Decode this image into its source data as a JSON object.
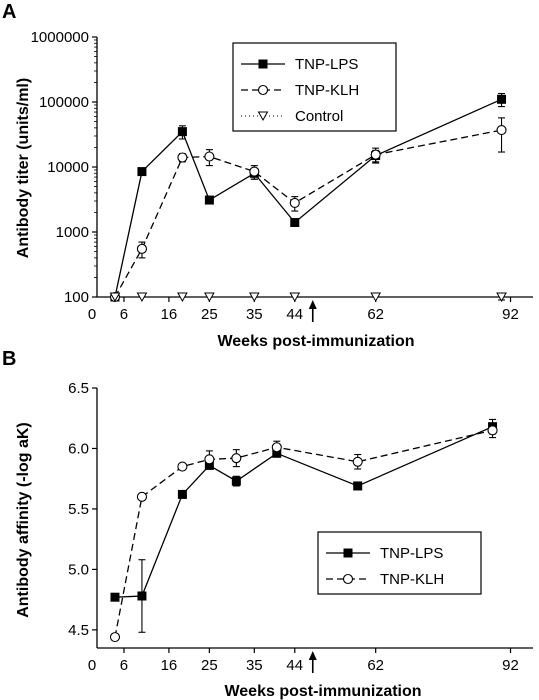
{
  "chart_data": [
    {
      "panel": "A",
      "type": "line",
      "xlabel": "Weeks post-immunization",
      "ylabel": "Antibody titer (units/ml)",
      "y_scale": "log",
      "xlim": [
        0,
        97
      ],
      "ylim": [
        100,
        1000000
      ],
      "x_tick_labels": [
        "0",
        "6",
        "16",
        "25",
        "35",
        "44",
        "62",
        "92"
      ],
      "x_ticks": [
        0,
        6,
        16,
        25,
        35,
        44,
        62,
        92
      ],
      "y_tick_labels": [
        "100",
        "1000",
        "10000",
        "100000",
        "1000000"
      ],
      "y_ticks": [
        100,
        1000,
        10000,
        100000,
        1000000
      ],
      "arrow_x": 48,
      "legend_position": "top-center",
      "series": [
        {
          "name": "TNP-LPS",
          "marker": "square-filled",
          "line": "solid",
          "x": [
            4,
            10,
            19,
            25,
            35,
            44,
            62,
            90
          ],
          "y": [
            100,
            8500,
            35000,
            3100,
            8000,
            1400,
            15000,
            110000
          ],
          "err": [
            0,
            0,
            8000,
            0,
            1500,
            0,
            3000,
            25000
          ]
        },
        {
          "name": "TNP-KLH",
          "marker": "circle-open",
          "line": "dashed",
          "x": [
            4,
            10,
            19,
            25,
            35,
            44,
            62,
            90
          ],
          "y": [
            100,
            550,
            14000,
            14500,
            8500,
            2800,
            15500,
            37000
          ],
          "err": [
            0,
            150,
            2000,
            4000,
            2000,
            700,
            4000,
            20000
          ]
        },
        {
          "name": "Control",
          "marker": "triangle-down-open",
          "line": "dotted",
          "x": [
            4,
            10,
            19,
            25,
            35,
            44,
            62,
            90
          ],
          "y": [
            100,
            100,
            100,
            100,
            100,
            100,
            100,
            100
          ],
          "err": [
            0,
            0,
            0,
            0,
            0,
            0,
            0,
            10
          ]
        }
      ]
    },
    {
      "panel": "B",
      "type": "line",
      "xlabel": "Weeks post-immunization",
      "ylabel": "Antibody affinity (-log aK)",
      "xlim": [
        0,
        97
      ],
      "ylim": [
        4.35,
        6.5
      ],
      "x_tick_labels": [
        "0",
        "6",
        "16",
        "25",
        "35",
        "44",
        "62",
        "92"
      ],
      "x_ticks": [
        0,
        6,
        16,
        25,
        35,
        44,
        62,
        92
      ],
      "y_tick_labels": [
        "4.5",
        "5.0",
        "5.5",
        "6.0",
        "6.5"
      ],
      "y_ticks": [
        4.5,
        5.0,
        5.5,
        6.0,
        6.5
      ],
      "arrow_x": 48,
      "legend_position": "bottom-right",
      "series": [
        {
          "name": "TNP-LPS",
          "marker": "square-filled",
          "line": "solid",
          "x": [
            4,
            10,
            19,
            25,
            31,
            40,
            58,
            88
          ],
          "y": [
            4.77,
            4.78,
            5.62,
            5.86,
            5.73,
            5.96,
            5.69,
            6.18
          ],
          "err": [
            0,
            0.3,
            0,
            0.03,
            0.04,
            0.03,
            0.03,
            0.06
          ]
        },
        {
          "name": "TNP-KLH",
          "marker": "circle-open",
          "line": "dashed",
          "x": [
            4,
            10,
            19,
            25,
            31,
            40,
            58,
            88
          ],
          "y": [
            4.44,
            5.6,
            5.85,
            5.91,
            5.92,
            6.01,
            5.89,
            6.15
          ],
          "err": [
            0,
            0,
            0,
            0.07,
            0.07,
            0.05,
            0.06,
            0.06
          ]
        }
      ]
    }
  ],
  "colors": {
    "ink": "#000000",
    "paper": "#ffffff"
  }
}
